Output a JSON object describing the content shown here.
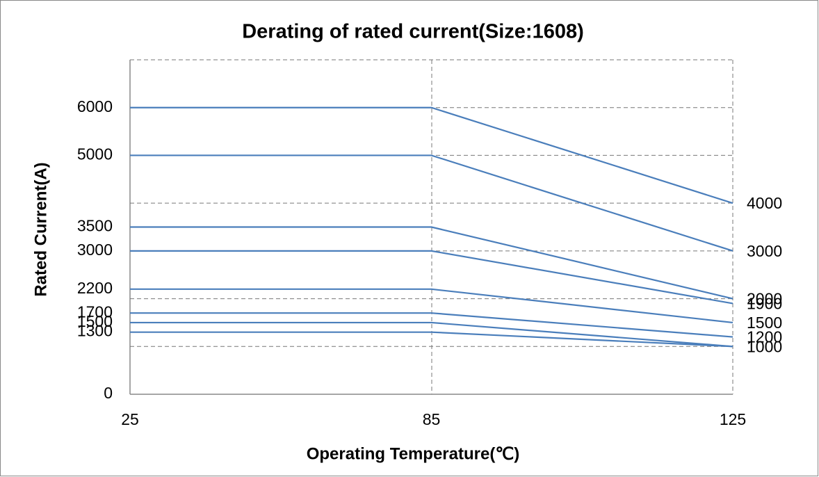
{
  "chart_data": {
    "type": "line",
    "title": "Derating of rated current(Size:1608)",
    "x_label": "Operating Temperature(℃)",
    "y_label": "Rated Current(A)",
    "categories": [
      "25",
      "85",
      "125"
    ],
    "color": "#4a7ebb",
    "series": [
      {
        "values": [
          6000,
          6000,
          4000
        ]
      },
      {
        "values": [
          5000,
          5000,
          3000
        ]
      },
      {
        "values": [
          3500,
          3500,
          2000
        ]
      },
      {
        "values": [
          3000,
          3000,
          1900
        ]
      },
      {
        "values": [
          2200,
          2200,
          1500
        ]
      },
      {
        "values": [
          1700,
          1700,
          1200
        ]
      },
      {
        "values": [
          1500,
          1500,
          1000
        ]
      },
      {
        "values": [
          1300,
          1300,
          1000
        ]
      }
    ],
    "ylim": [
      0,
      7000
    ],
    "yticks": [
      6000,
      5000,
      3500,
      3000,
      2200,
      1700,
      1500,
      1300,
      0
    ],
    "y2lim": [
      0,
      7000
    ],
    "y2ticks": [
      4000,
      3000,
      2000,
      1900,
      1500,
      1200,
      1000
    ],
    "gridlines": [
      1000,
      2000,
      3000,
      4000,
      5000,
      6000
    ]
  }
}
